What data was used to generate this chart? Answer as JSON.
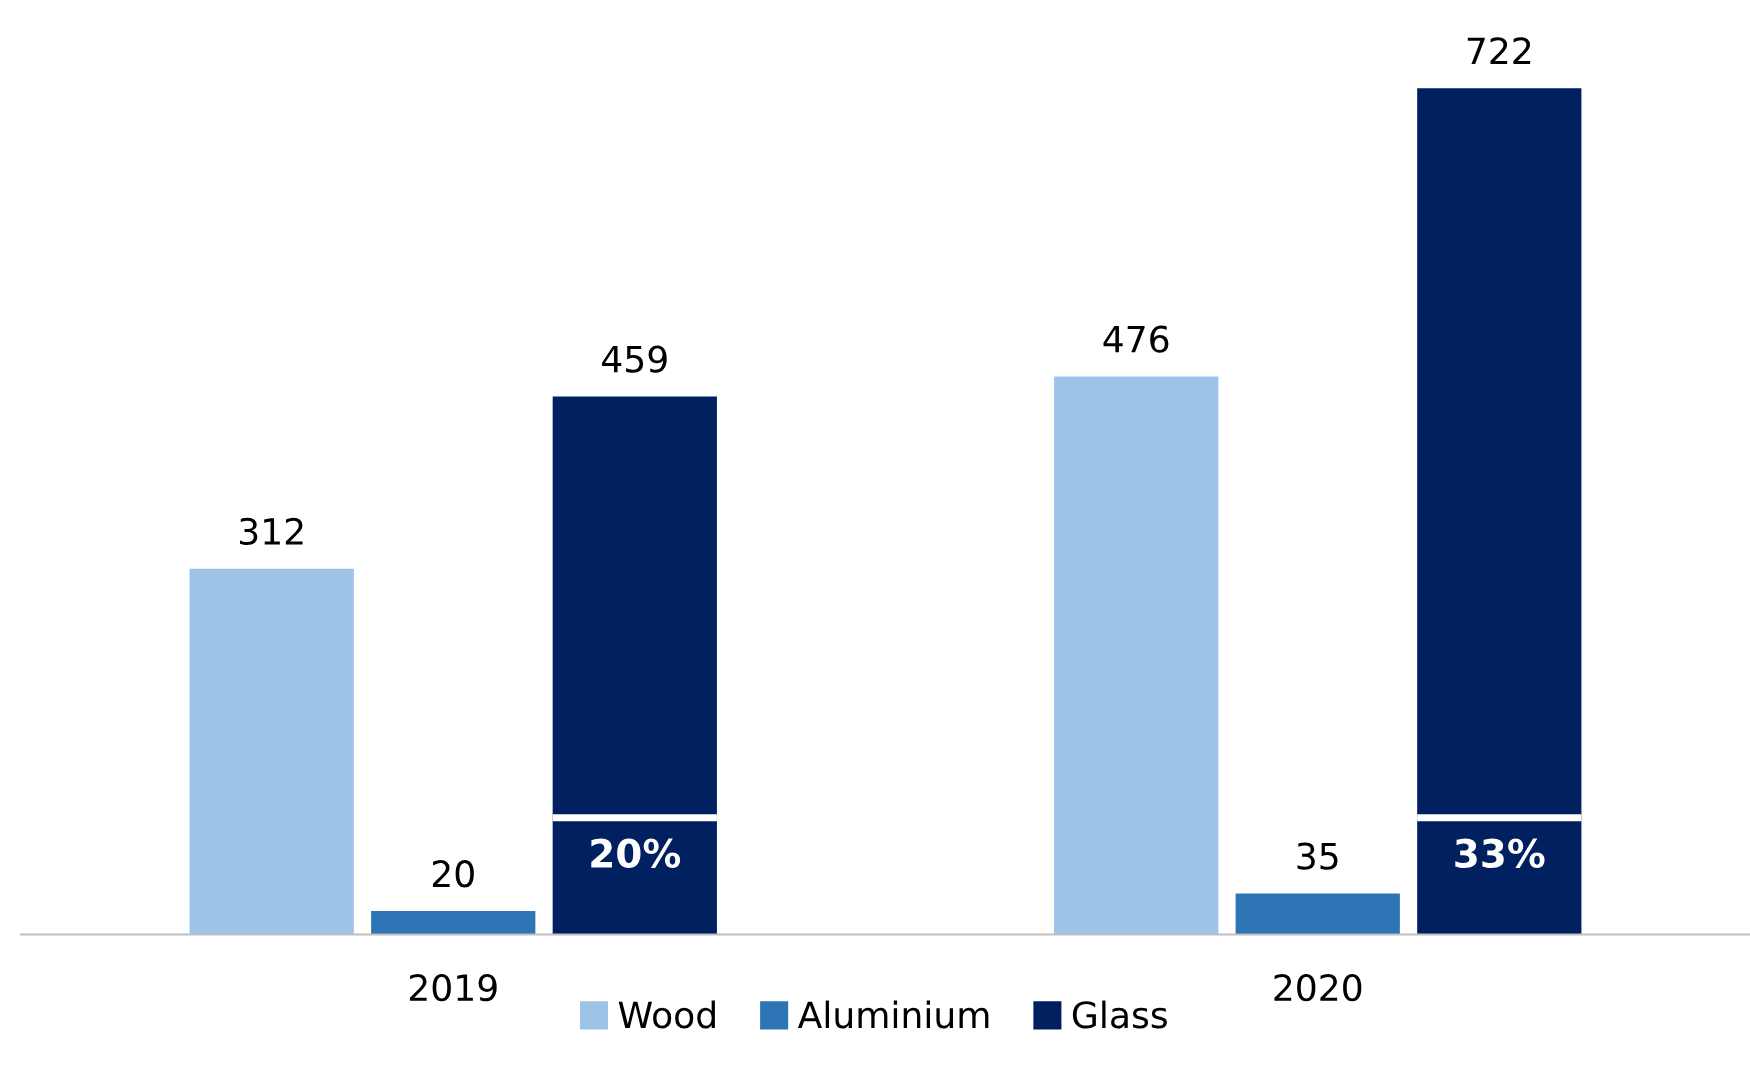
{
  "chart_data": {
    "type": "bar",
    "categories": [
      "2019",
      "2020"
    ],
    "series": [
      {
        "name": "Wood",
        "color": "#9dc3e6",
        "values": [
          312,
          476
        ]
      },
      {
        "name": "Aluminium",
        "color": "#2e75b6",
        "values": [
          20,
          35
        ]
      },
      {
        "name": "Glass",
        "color": "#002060",
        "values": [
          459,
          722
        ]
      }
    ],
    "data_labels": true,
    "tick_labels": "x",
    "grid": false,
    "legend": "bottom",
    "annotations": [
      "20%",
      "33%"
    ]
  }
}
